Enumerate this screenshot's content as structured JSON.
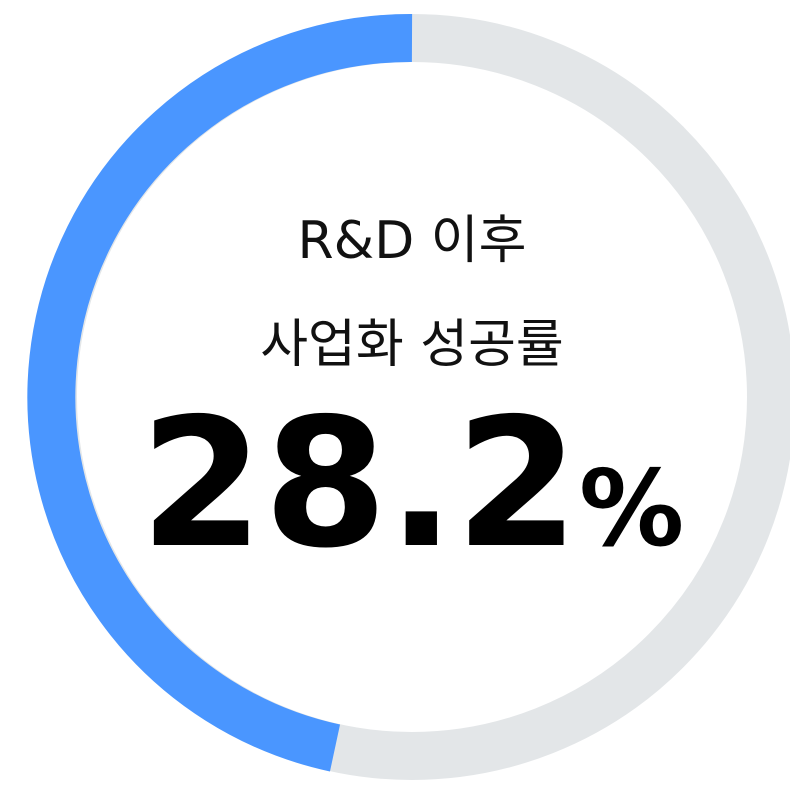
{
  "label_lines": [
    "R&D 이후",
    "사업화 성공률"
  ],
  "value": "28.2",
  "unit": "%"
}
